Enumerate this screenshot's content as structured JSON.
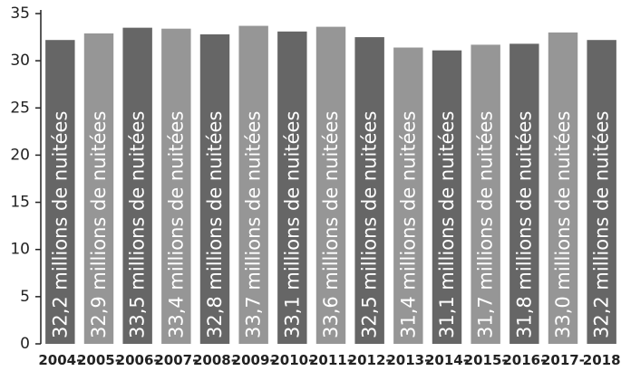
{
  "chart_data": {
    "type": "bar",
    "categories": [
      "2004-",
      "2005-",
      "2006-",
      "2007-",
      "2008-",
      "2009-",
      "2010-",
      "2011-",
      "2012-",
      "2013-",
      "2014-",
      "2015-",
      "2016-",
      "2017-",
      "2018"
    ],
    "values": [
      32.2,
      32.9,
      33.5,
      33.4,
      32.8,
      33.7,
      33.1,
      33.6,
      32.5,
      31.4,
      31.1,
      31.7,
      31.8,
      33.0,
      32.2
    ],
    "data_labels": [
      "32,2 millions de nuitées",
      "32,9 millions de nuitées",
      "33,5 millions de nuitées",
      "33,4 millions de nuitées",
      "32,8 millions de nuitées",
      "33,7 millions de nuitées",
      "33,1 millions de nuitées",
      "33,6 millions de nuitées",
      "32,5 millions de nuitées",
      "31,4 millions de nuitées",
      "31,1 millions de nuitées",
      "31,7 millions de nuitées",
      "31,8 millions de nuitées",
      "33,0 millions de nuitées",
      "32,2 millions de nuitées"
    ],
    "yticks": [
      "0",
      "5",
      "10",
      "15",
      "20",
      "25",
      "30",
      "35"
    ],
    "ylim": [
      0,
      35
    ],
    "title": "",
    "xlabel": "",
    "ylabel": "",
    "grid": false,
    "colors": [
      "#666666",
      "#969696"
    ]
  }
}
